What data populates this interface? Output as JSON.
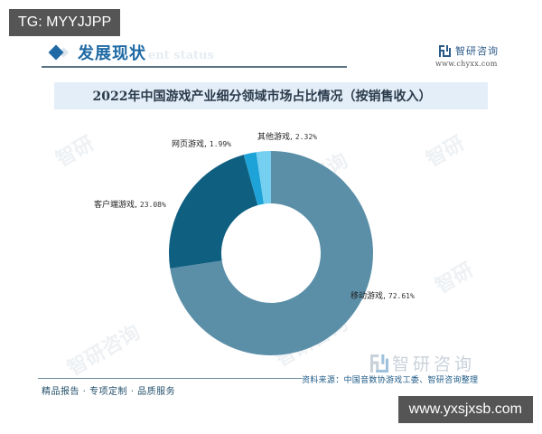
{
  "overlay": {
    "tg_badge": "TG: MYYJJPP",
    "url_badge": "www.yxsjxsb.com"
  },
  "header": {
    "section_title": "发展现状",
    "section_subtitle": "ent status",
    "brand_name": "智研咨询",
    "brand_url": "www.chyxx.com"
  },
  "chart_title": "2022年中国游戏产业细分领域市场占比情况（按销售收入）",
  "labels": {
    "mobile": {
      "name": "移动游戏,",
      "value": "72.61%"
    },
    "client": {
      "name": "客户端游戏,",
      "value": "23.08%"
    },
    "web": {
      "name": "网页游戏,",
      "value": "1.99%"
    },
    "other": {
      "name": "其他游戏,",
      "value": "2.32%"
    }
  },
  "footer": {
    "left_text": "精品报告 · 专项定制 · 品质服务",
    "brand_name": "智研咨询",
    "source": "资料来源：中国音数协游戏工委、智研咨询整理"
  },
  "colors": {
    "mobile": "#5b8fa8",
    "client": "#0f5f80",
    "web": "#1ea3d8",
    "other": "#74cff0",
    "accent": "#1f6aa5",
    "title_bar": "#e3eef8"
  },
  "chart_data": {
    "type": "pie",
    "variant": "donut",
    "title": "2022年中国游戏产业细分领域市场占比情况（按销售收入）",
    "categories": [
      "移动游戏",
      "客户端游戏",
      "网页游戏",
      "其他游戏"
    ],
    "values": [
      72.61,
      23.08,
      1.99,
      2.32
    ],
    "unit": "%",
    "colors": [
      "#5b8fa8",
      "#0f5f80",
      "#1ea3d8",
      "#74cff0"
    ],
    "start_angle": "12 o'clock, clockwise: 移动游戏 first",
    "legend": "none (direct labels)",
    "source": "资料来源：中国音数协游戏工委、智研咨询整理"
  }
}
